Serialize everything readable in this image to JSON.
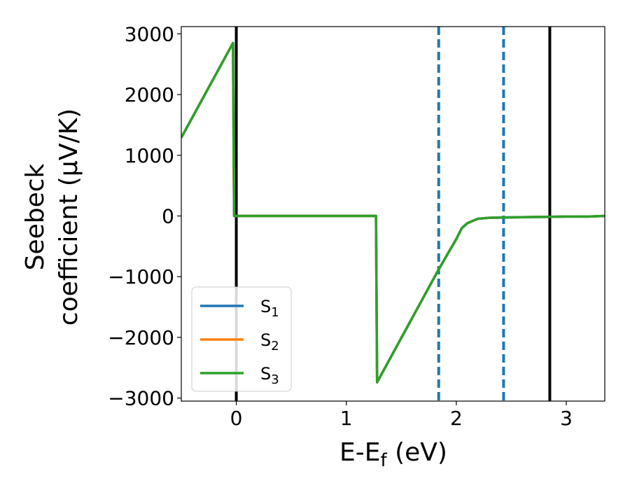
{
  "chart_data": {
    "type": "line",
    "title": "",
    "xlabel": "E-E",
    "xlabel_sub": "f",
    "xlabel_unit": " (eV)",
    "ylabel_line1": "Seebeck",
    "ylabel_line2": "coefficient  (μV/K)",
    "xlim": [
      -0.5,
      3.35
    ],
    "ylim": [
      -3050,
      3120
    ],
    "xticks": [
      0,
      1,
      2,
      3
    ],
    "xtick_labels": [
      "0",
      "1",
      "2",
      "3"
    ],
    "yticks": [
      3000,
      2000,
      1000,
      0,
      -1000,
      -2000,
      -3000
    ],
    "ytick_labels": [
      "3000",
      "2000",
      "1000",
      "0",
      "−1000",
      "−2000",
      "−3000"
    ],
    "grid": false,
    "legend_position": "lower-left",
    "vertical_lines": [
      {
        "x": 0.0,
        "style": "solid",
        "color": "#000000"
      },
      {
        "x": 2.85,
        "style": "solid",
        "color": "#000000"
      },
      {
        "x": 1.84,
        "style": "dashed",
        "color": "#1f77b4"
      },
      {
        "x": 2.43,
        "style": "dashed",
        "color": "#1f77b4"
      }
    ],
    "series": [
      {
        "name": "S",
        "sub": "1",
        "color": "#1f77b4",
        "x": [
          -0.5,
          -0.03,
          -0.02,
          1.27,
          1.28,
          1.84,
          2.0,
          2.05,
          2.1,
          2.15,
          2.2,
          2.3,
          2.43,
          2.6,
          2.8,
          3.0,
          3.2,
          3.35
        ],
        "y": [
          1290,
          2850,
          0,
          0,
          -2740,
          -880,
          -380,
          -200,
          -120,
          -80,
          -45,
          -30,
          -25,
          -20,
          -15,
          -10,
          -10,
          0
        ]
      },
      {
        "name": "S",
        "sub": "2",
        "color": "#ff7f0e",
        "x": [
          -0.5,
          -0.03,
          -0.02,
          1.27,
          1.28,
          1.84,
          2.0,
          2.05,
          2.1,
          2.15,
          2.2,
          2.3,
          2.43,
          2.6,
          2.8,
          3.0,
          3.2,
          3.35
        ],
        "y": [
          1290,
          2850,
          0,
          0,
          -2740,
          -880,
          -380,
          -200,
          -120,
          -80,
          -45,
          -30,
          -25,
          -20,
          -15,
          -10,
          -10,
          0
        ]
      },
      {
        "name": "S",
        "sub": "3",
        "color": "#2ca02c",
        "x": [
          -0.5,
          -0.03,
          -0.02,
          1.27,
          1.28,
          1.84,
          2.0,
          2.05,
          2.1,
          2.15,
          2.2,
          2.3,
          2.43,
          2.6,
          2.8,
          3.0,
          3.2,
          3.35
        ],
        "y": [
          1290,
          2850,
          0,
          0,
          -2740,
          -880,
          -380,
          -200,
          -120,
          -80,
          -45,
          -30,
          -25,
          -20,
          -15,
          -10,
          -10,
          0
        ]
      }
    ]
  }
}
